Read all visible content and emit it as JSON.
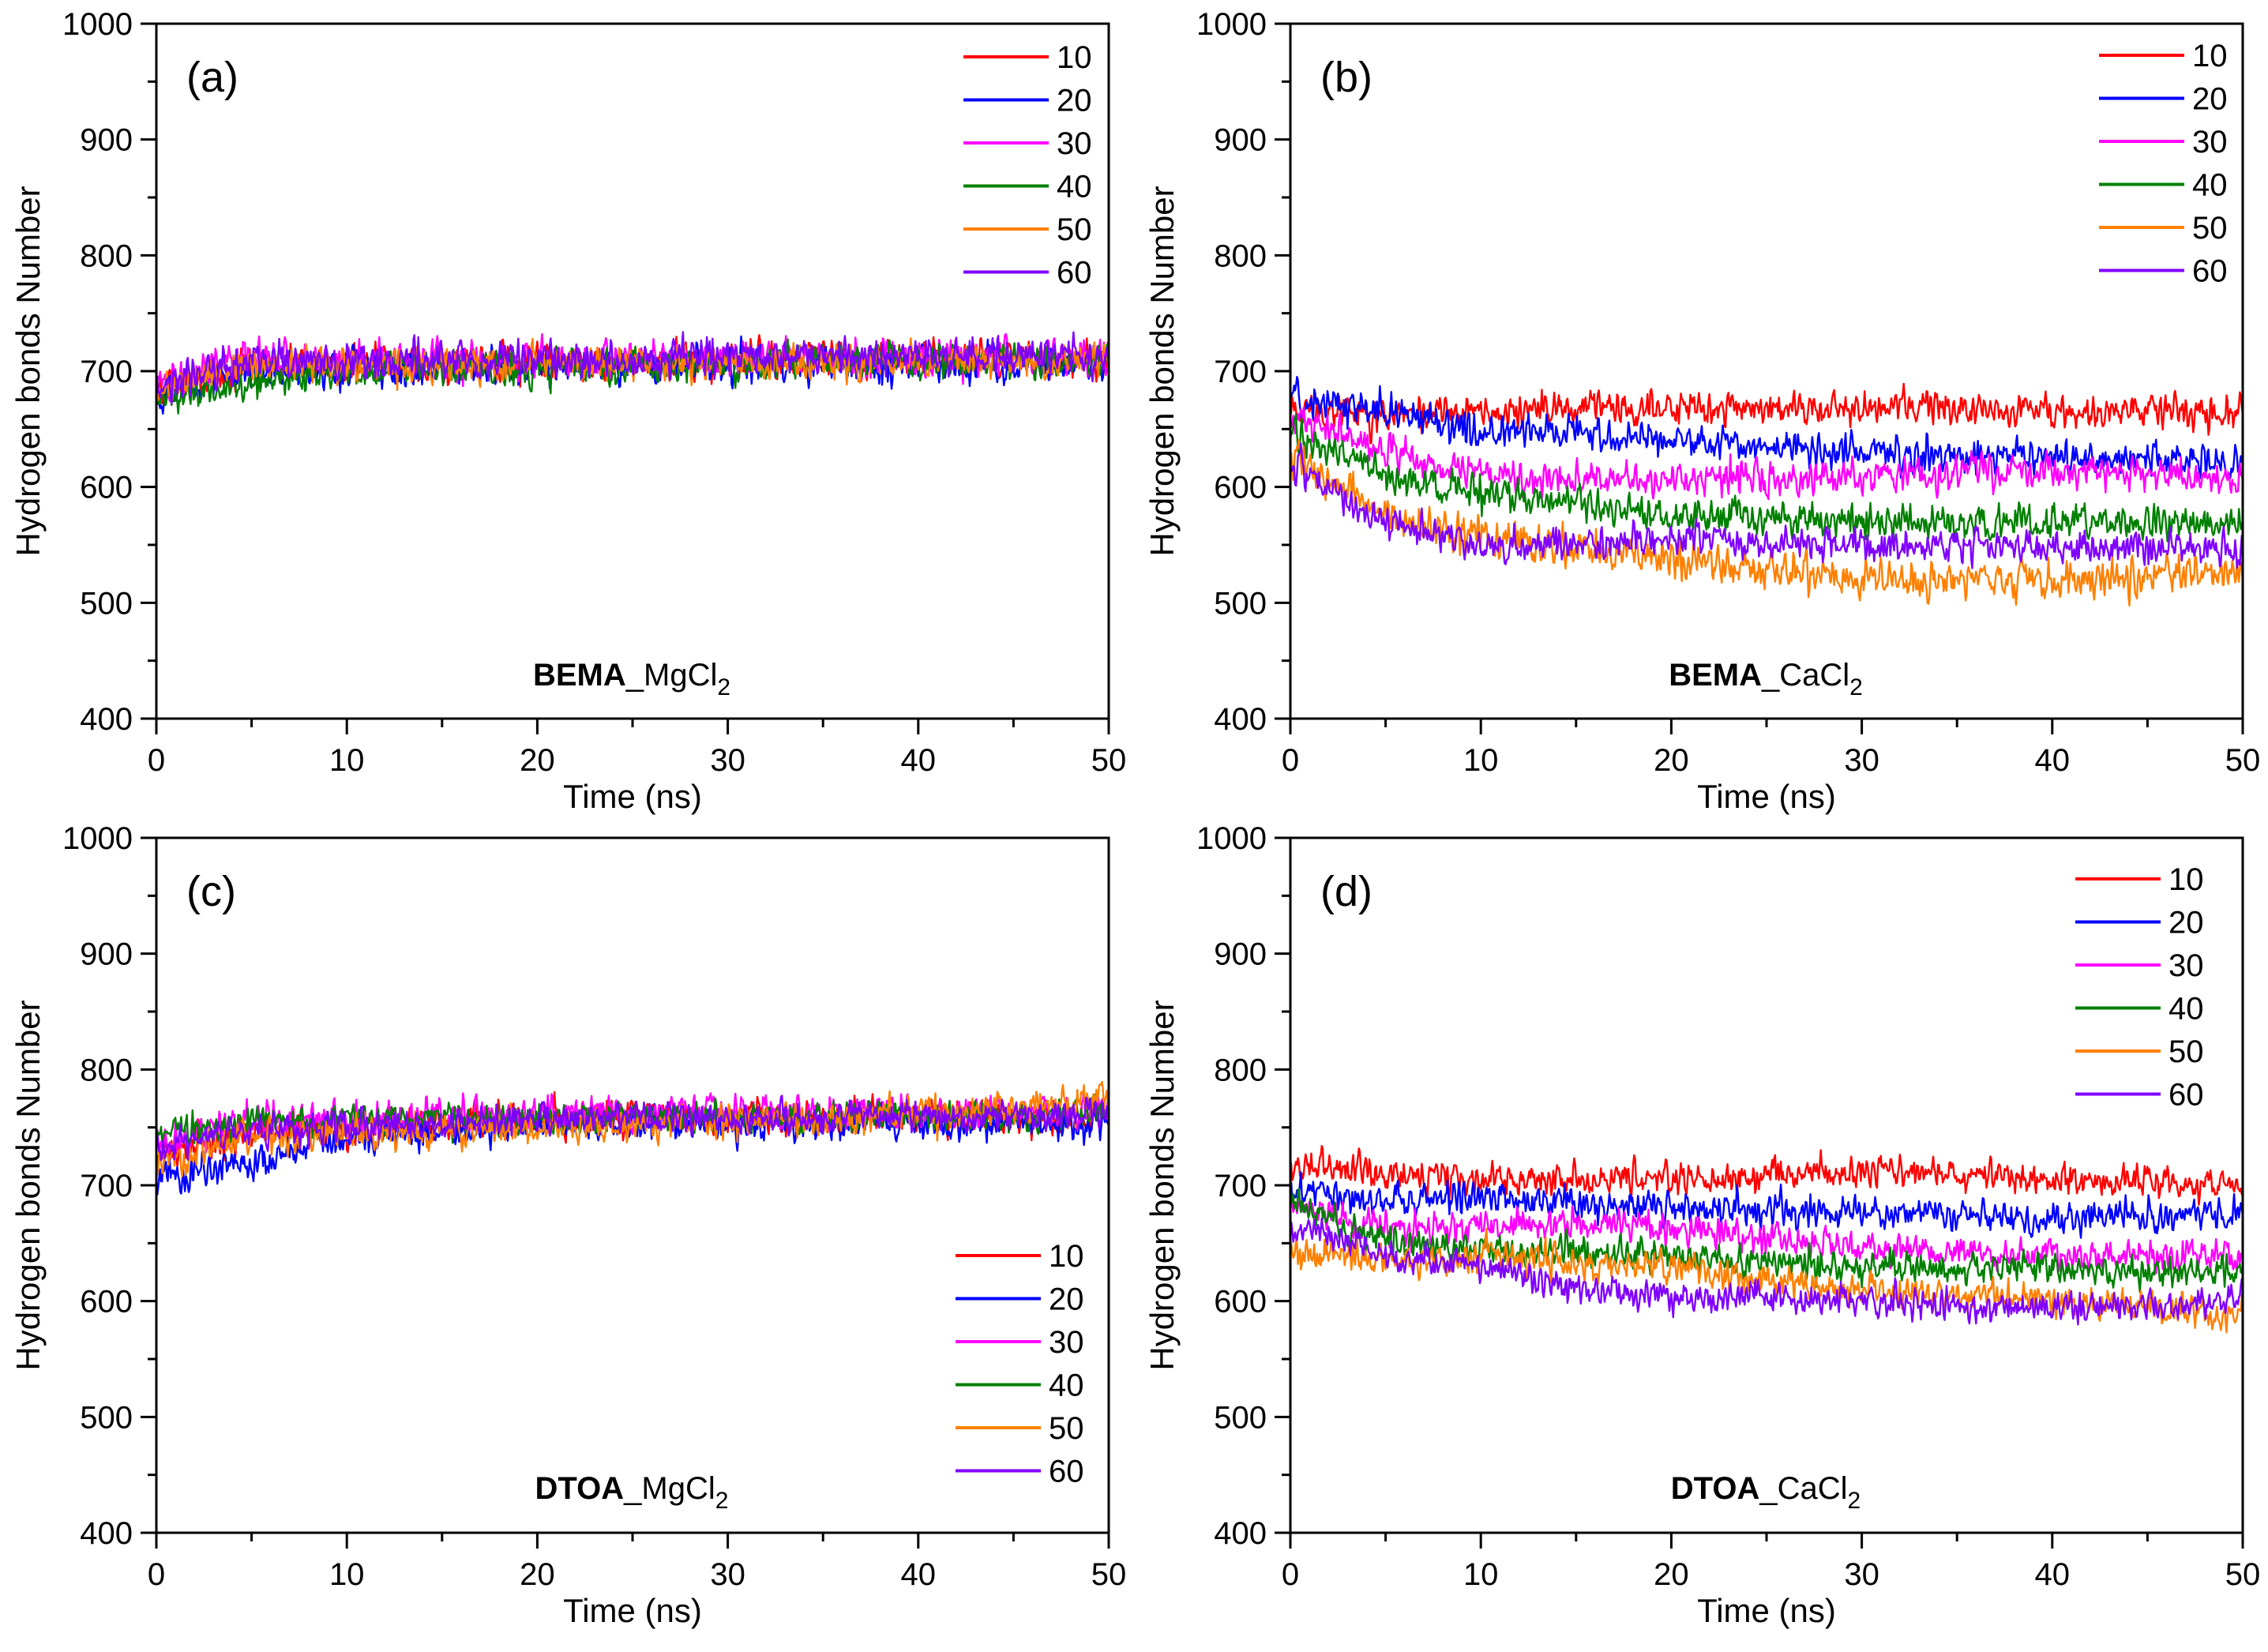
{
  "chart_data": [
    {
      "type": "line",
      "panel_label": "(a)",
      "xlabel": "Time (ns)",
      "ylabel": "Hydrogen bonds Number",
      "xlim": [
        0,
        50
      ],
      "ylim": [
        400,
        1000
      ],
      "xticks": [
        0,
        10,
        20,
        30,
        40,
        50
      ],
      "yticks": [
        400,
        500,
        600,
        700,
        800,
        900,
        1000
      ],
      "annotation": {
        "bold": "BEMA",
        "rest": "_MgCl",
        "subscript": "2"
      },
      "legend_position": "top-right",
      "series": [
        {
          "name": "10",
          "color": "#ff0000",
          "mean_points": [
            [
              0,
              685
            ],
            [
              5,
              705
            ],
            [
              50,
              712
            ]
          ],
          "noise": 14
        },
        {
          "name": "20",
          "color": "#0000ff",
          "mean_points": [
            [
              0,
              680
            ],
            [
              5,
              702
            ],
            [
              50,
              708
            ]
          ],
          "noise": 14
        },
        {
          "name": "30",
          "color": "#ff00ff",
          "mean_points": [
            [
              0,
              690
            ],
            [
              5,
              710
            ],
            [
              50,
              712
            ]
          ],
          "noise": 14
        },
        {
          "name": "40",
          "color": "#008000",
          "mean_points": [
            [
              0,
              675
            ],
            [
              5,
              690
            ],
            [
              12,
              702
            ],
            [
              50,
              710
            ]
          ],
          "noise": 13
        },
        {
          "name": "50",
          "color": "#ff8000",
          "mean_points": [
            [
              0,
              685
            ],
            [
              5,
              705
            ],
            [
              50,
              710
            ]
          ],
          "noise": 13
        },
        {
          "name": "60",
          "color": "#8000ff",
          "mean_points": [
            [
              0,
              690
            ],
            [
              5,
              708
            ],
            [
              50,
              715
            ]
          ],
          "noise": 14
        }
      ]
    },
    {
      "type": "line",
      "panel_label": "(b)",
      "xlabel": "Time (ns)",
      "ylabel": "Hydrogen bonds Number",
      "xlim": [
        0,
        50
      ],
      "ylim": [
        400,
        1000
      ],
      "xticks": [
        0,
        10,
        20,
        30,
        40,
        50
      ],
      "yticks": [
        400,
        500,
        600,
        700,
        800,
        900,
        1000
      ],
      "annotation": {
        "bold": "BEMA",
        "rest": "_CaCl",
        "subscript": "2"
      },
      "legend_position": "top-right",
      "series": [
        {
          "name": "10",
          "color": "#ff0000",
          "mean_points": [
            [
              0,
              670
            ],
            [
              5,
              660
            ],
            [
              10,
              665
            ],
            [
              20,
              668
            ],
            [
              30,
              668
            ],
            [
              40,
              665
            ],
            [
              50,
              665
            ]
          ],
          "noise": 13
        },
        {
          "name": "20",
          "color": "#0000ff",
          "mean_points": [
            [
              0,
              680
            ],
            [
              5,
              665
            ],
            [
              10,
              645
            ],
            [
              15,
              650
            ],
            [
              20,
              640
            ],
            [
              30,
              630
            ],
            [
              40,
              625
            ],
            [
              50,
              620
            ]
          ],
          "noise": 13
        },
        {
          "name": "30",
          "color": "#ff00ff",
          "mean_points": [
            [
              0,
              660
            ],
            [
              5,
              630
            ],
            [
              10,
              610
            ],
            [
              20,
              605
            ],
            [
              30,
              610
            ],
            [
              40,
              615
            ],
            [
              50,
              605
            ]
          ],
          "noise": 13
        },
        {
          "name": "40",
          "color": "#008000",
          "mean_points": [
            [
              0,
              650
            ],
            [
              5,
              610
            ],
            [
              10,
              595
            ],
            [
              20,
              575
            ],
            [
              30,
              570
            ],
            [
              40,
              570
            ],
            [
              50,
              565
            ]
          ],
          "noise": 13
        },
        {
          "name": "50",
          "color": "#ff8000",
          "mean_points": [
            [
              0,
              630
            ],
            [
              5,
              575
            ],
            [
              10,
              555
            ],
            [
              20,
              540
            ],
            [
              30,
              520
            ],
            [
              40,
              520
            ],
            [
              50,
              525
            ]
          ],
          "noise": 14
        },
        {
          "name": "60",
          "color": "#8000ff",
          "mean_points": [
            [
              0,
              620
            ],
            [
              5,
              570
            ],
            [
              10,
              550
            ],
            [
              20,
              555
            ],
            [
              30,
              550
            ],
            [
              40,
              550
            ],
            [
              50,
              545
            ]
          ],
          "noise": 13
        }
      ]
    },
    {
      "type": "line",
      "panel_label": "(c)",
      "xlabel": "Time (ns)",
      "ylabel": "Hydrogen bonds Number",
      "xlim": [
        0,
        50
      ],
      "ylim": [
        400,
        1000
      ],
      "xticks": [
        0,
        10,
        20,
        30,
        40,
        50
      ],
      "yticks": [
        400,
        500,
        600,
        700,
        800,
        900,
        1000
      ],
      "annotation": {
        "bold": "DTOA",
        "rest": "_MgCl",
        "subscript": "2"
      },
      "legend_position": "bottom-right",
      "series": [
        {
          "name": "10",
          "color": "#ff0000",
          "mean_points": [
            [
              0,
              725
            ],
            [
              5,
              748
            ],
            [
              20,
              757
            ],
            [
              50,
              760
            ]
          ],
          "noise": 13
        },
        {
          "name": "20",
          "color": "#0000ff",
          "mean_points": [
            [
              0,
              705
            ],
            [
              5,
              720
            ],
            [
              10,
              740
            ],
            [
              20,
              752
            ],
            [
              50,
              755
            ]
          ],
          "noise": 13
        },
        {
          "name": "30",
          "color": "#ff00ff",
          "mean_points": [
            [
              0,
              735
            ],
            [
              5,
              758
            ],
            [
              20,
              762
            ],
            [
              50,
              765
            ]
          ],
          "noise": 13
        },
        {
          "name": "40",
          "color": "#008000",
          "mean_points": [
            [
              0,
              745
            ],
            [
              5,
              755
            ],
            [
              20,
              758
            ],
            [
              50,
              760
            ]
          ],
          "noise": 12
        },
        {
          "name": "50",
          "color": "#ff8000",
          "mean_points": [
            [
              0,
              720
            ],
            [
              5,
              740
            ],
            [
              20,
              750
            ],
            [
              40,
              760
            ],
            [
              50,
              775
            ]
          ],
          "noise": 13
        },
        {
          "name": "60",
          "color": "#8000ff",
          "mean_points": [
            [
              0,
              730
            ],
            [
              5,
              750
            ],
            [
              20,
              757
            ],
            [
              50,
              760
            ]
          ],
          "noise": 12
        }
      ]
    },
    {
      "type": "line",
      "panel_label": "(d)",
      "xlabel": "Time (ns)",
      "ylabel": "Hydrogen bonds Number",
      "xlim": [
        0,
        50
      ],
      "ylim": [
        400,
        1000
      ],
      "xticks": [
        0,
        10,
        20,
        30,
        40,
        50
      ],
      "yticks": [
        400,
        500,
        600,
        700,
        800,
        900,
        1000
      ],
      "annotation": {
        "bold": "DTOA",
        "rest": "_CaCl",
        "subscript": "2"
      },
      "legend_position": "top-right",
      "series": [
        {
          "name": "10",
          "color": "#ff0000",
          "mean_points": [
            [
              0,
              715
            ],
            [
              5,
              712
            ],
            [
              10,
              705
            ],
            [
              20,
              705
            ],
            [
              30,
              712
            ],
            [
              40,
              705
            ],
            [
              50,
              700
            ]
          ],
          "noise": 12
        },
        {
          "name": "20",
          "color": "#0000ff",
          "mean_points": [
            [
              0,
              695
            ],
            [
              5,
              688
            ],
            [
              10,
              690
            ],
            [
              20,
              680
            ],
            [
              30,
              675
            ],
            [
              40,
              670
            ],
            [
              50,
              678
            ]
          ],
          "noise": 12
        },
        {
          "name": "30",
          "color": "#ff00ff",
          "mean_points": [
            [
              0,
              680
            ],
            [
              5,
              665
            ],
            [
              10,
              665
            ],
            [
              20,
              665
            ],
            [
              30,
              645
            ],
            [
              40,
              640
            ],
            [
              50,
              640
            ]
          ],
          "noise": 12
        },
        {
          "name": "40",
          "color": "#008000",
          "mean_points": [
            [
              0,
              685
            ],
            [
              5,
              650
            ],
            [
              10,
              645
            ],
            [
              20,
              640
            ],
            [
              30,
              628
            ],
            [
              40,
              628
            ],
            [
              50,
              625
            ]
          ],
          "noise": 12
        },
        {
          "name": "50",
          "color": "#ff8000",
          "mean_points": [
            [
              0,
              640
            ],
            [
              5,
              635
            ],
            [
              10,
              640
            ],
            [
              20,
              628
            ],
            [
              30,
              610
            ],
            [
              40,
              600
            ],
            [
              50,
              590
            ]
          ],
          "noise": 13
        },
        {
          "name": "60",
          "color": "#8000ff",
          "mean_points": [
            [
              0,
              665
            ],
            [
              5,
              640
            ],
            [
              10,
              630
            ],
            [
              15,
              610
            ],
            [
              20,
              605
            ],
            [
              30,
              600
            ],
            [
              40,
              592
            ],
            [
              50,
              600
            ]
          ],
          "noise": 12
        }
      ]
    }
  ]
}
